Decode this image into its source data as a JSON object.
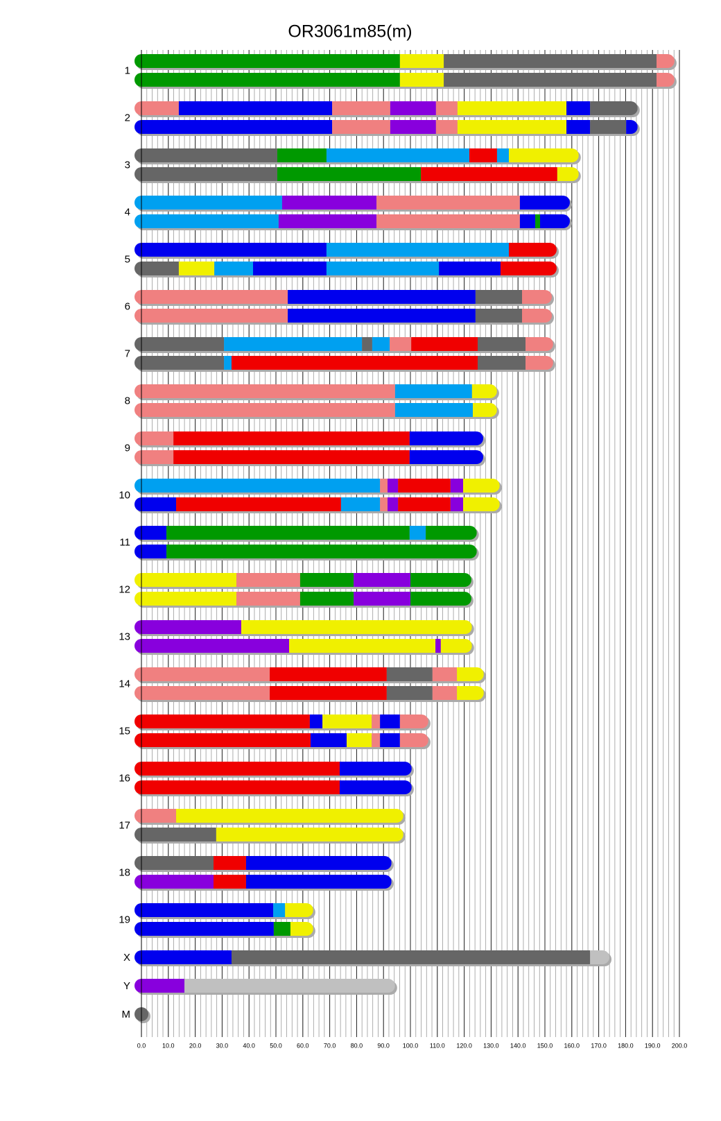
{
  "chart_data": {
    "type": "chromosome",
    "title": "OR3061m85(m)",
    "xlim": [
      0,
      200
    ],
    "xticks": [
      {
        "value": 0,
        "label": "0.0"
      },
      {
        "value": 10,
        "label": "10.0"
      },
      {
        "value": 20,
        "label": "20.0"
      },
      {
        "value": 30,
        "label": "30.0"
      },
      {
        "value": 40,
        "label": "40.0"
      },
      {
        "value": 50,
        "label": "50.0"
      },
      {
        "value": 60,
        "label": "60.0"
      },
      {
        "value": 70,
        "label": "70.0"
      },
      {
        "value": 80,
        "label": "80.0"
      },
      {
        "value": 90,
        "label": "90.0"
      },
      {
        "value": 100,
        "label": "100.0"
      },
      {
        "value": 110,
        "label": "110.0"
      },
      {
        "value": 120,
        "label": "120.0"
      },
      {
        "value": 130,
        "label": "130.0"
      },
      {
        "value": 140,
        "label": "140.0"
      },
      {
        "value": 150,
        "label": "150.0"
      },
      {
        "value": 160,
        "label": "160.0"
      },
      {
        "value": 170,
        "label": "170.0"
      },
      {
        "value": 180,
        "label": "180.0"
      },
      {
        "value": 190,
        "label": "190.0"
      },
      {
        "value": 200,
        "label": "200.0"
      }
    ],
    "grid": true,
    "minor_grid_step": 2,
    "chromosomes": [
      {
        "label": "1",
        "haplotypes": [
          {
            "colors": [
              "#009900",
              "#f0f000",
              "#666666",
              "#f08080"
            ],
            "lengths": [
              96.1,
              16.3,
              79.1,
              4.1
            ]
          },
          {
            "colors": [
              "#009900",
              "#f0f000",
              "#666666",
              "#f08080"
            ],
            "lengths": [
              96.1,
              16.3,
              79.1,
              4.1
            ]
          }
        ]
      },
      {
        "label": "2",
        "haplotypes": [
          {
            "colors": [
              "#f08080",
              "#0000ee",
              "#f08080",
              "#8800dd",
              "#f08080",
              "#f0f000",
              "#0000ee",
              "#666666"
            ],
            "lengths": [
              13.9,
              57,
              21.6,
              17,
              8,
              40.5,
              8.8,
              15.1
            ]
          },
          {
            "colors": [
              "#0000ee",
              "#f08080",
              "#8800dd",
              "#f08080",
              "#f0f000",
              "#0000ee",
              "#666666",
              "#0000ee"
            ],
            "lengths": [
              70.9,
              21.6,
              17,
              8,
              40.5,
              8.8,
              13.4,
              1.7
            ]
          }
        ]
      },
      {
        "label": "3",
        "haplotypes": [
          {
            "colors": [
              "#666666",
              "#009900",
              "#00a0f0",
              "#f00000",
              "#00a0f0",
              "#f0f000"
            ],
            "lengths": [
              50.5,
              18.3,
              53.1,
              10.3,
              4.4,
              23.4
            ]
          },
          {
            "colors": [
              "#666666",
              "#009900",
              "#f00000",
              "#f0f000"
            ],
            "lengths": [
              50.5,
              53.4,
              50.7,
              5.4
            ]
          }
        ]
      },
      {
        "label": "4",
        "haplotypes": [
          {
            "colors": [
              "#00a0f0",
              "#8800dd",
              "#f08080",
              "#0000ee"
            ],
            "lengths": [
              52.3,
              35.1,
              53.3,
              16
            ]
          },
          {
            "colors": [
              "#00a0f0",
              "#8800dd",
              "#f08080",
              "#0000ee",
              "#009900",
              "#0000ee"
            ],
            "lengths": [
              51,
              36.4,
              53.3,
              5.7,
              1.8,
              8.5
            ]
          }
        ]
      },
      {
        "label": "5",
        "haplotypes": [
          {
            "colors": [
              "#0000ee",
              "#00a0f0",
              "#f00000"
            ],
            "lengths": [
              68.8,
              67.8,
              15.2
            ]
          },
          {
            "colors": [
              "#666666",
              "#f0f000",
              "#00a0f0",
              "#0000ee",
              "#00a0f0",
              "#0000ee",
              "#f00000"
            ],
            "lengths": [
              13.9,
              13.2,
              14.4,
              27.3,
              41.8,
              22.9,
              18.3
            ]
          }
        ]
      },
      {
        "label": "6",
        "haplotypes": [
          {
            "colors": [
              "#f08080",
              "#0000ee",
              "#666666",
              "#f08080"
            ],
            "lengths": [
              54.4,
              69.8,
              17.3,
              8.5
            ]
          },
          {
            "colors": [
              "#f08080",
              "#0000ee",
              "#666666",
              "#f08080"
            ],
            "lengths": [
              54.4,
              69.8,
              17.3,
              8.5
            ]
          }
        ]
      },
      {
        "label": "7",
        "haplotypes": [
          {
            "colors": [
              "#666666",
              "#00a0f0",
              "#666666",
              "#00a0f0",
              "#f08080",
              "#f00000",
              "#666666",
              "#f08080"
            ],
            "lengths": [
              30.7,
              51.3,
              3.8,
              6.5,
              8,
              24.7,
              17.8,
              7.7
            ]
          },
          {
            "colors": [
              "#666666",
              "#00a0f0",
              "#f00000",
              "#666666",
              "#f08080"
            ],
            "lengths": [
              30.7,
              2.8,
              91.5,
              17.8,
              7.7
            ]
          }
        ]
      },
      {
        "label": "8",
        "haplotypes": [
          {
            "colors": [
              "#f08080",
              "#00a0f0",
              "#f0f000"
            ],
            "lengths": [
              94.3,
              28.6,
              6.7
            ]
          },
          {
            "colors": [
              "#f08080",
              "#00a0f0",
              "#f0f000"
            ],
            "lengths": [
              94.3,
              28.9,
              6.4
            ]
          }
        ]
      },
      {
        "label": "9",
        "haplotypes": [
          {
            "colors": [
              "#f08080",
              "#f00000",
              "#0000ee"
            ],
            "lengths": [
              11.9,
              87.8,
              24.8
            ]
          },
          {
            "colors": [
              "#f08080",
              "#f00000",
              "#0000ee"
            ],
            "lengths": [
              11.9,
              87.8,
              24.8
            ]
          }
        ]
      },
      {
        "label": "10",
        "haplotypes": [
          {
            "colors": [
              "#00a0f0",
              "#f08080",
              "#8800dd",
              "#f00000",
              "#8800dd",
              "#f0f000"
            ],
            "lengths": [
              88.7,
              2.8,
              3.9,
              19.5,
              4.7,
              11
            ]
          },
          {
            "colors": [
              "#0000ee",
              "#f00000",
              "#00a0f0",
              "#f08080",
              "#8800dd",
              "#f00000",
              "#8800dd",
              "#f0f000"
            ],
            "lengths": [
              12.9,
              61.3,
              14.5,
              2.8,
              3.9,
              19.5,
              4.7,
              11
            ]
          }
        ]
      },
      {
        "label": "11",
        "haplotypes": [
          {
            "colors": [
              "#0000ee",
              "#009900",
              "#00a0f0",
              "#009900"
            ],
            "lengths": [
              9.3,
              90.4,
              6,
              16.4
            ]
          },
          {
            "colors": [
              "#0000ee",
              "#009900"
            ],
            "lengths": [
              9.3,
              112.8
            ]
          }
        ]
      },
      {
        "label": "12",
        "haplotypes": [
          {
            "colors": [
              "#f0f000",
              "#f08080",
              "#009900",
              "#8800dd",
              "#009900"
            ],
            "lengths": [
              35.3,
              23.7,
              19.9,
              21.1,
              20.1
            ]
          },
          {
            "colors": [
              "#f0f000",
              "#f08080",
              "#009900",
              "#8800dd",
              "#009900"
            ],
            "lengths": [
              35.3,
              23.7,
              19.9,
              21.1,
              20.1
            ]
          }
        ]
      },
      {
        "label": "13",
        "haplotypes": [
          {
            "colors": [
              "#8800dd",
              "#f0f000"
            ],
            "lengths": [
              37.1,
              83.2
            ]
          },
          {
            "colors": [
              "#8800dd",
              "#f0f000",
              "#8800dd",
              "#f0f000"
            ],
            "lengths": [
              54.9,
              54.4,
              2,
              9
            ]
          }
        ]
      },
      {
        "label": "14",
        "haplotypes": [
          {
            "colors": [
              "#f08080",
              "#f00000",
              "#666666",
              "#f08080",
              "#f0f000"
            ],
            "lengths": [
              47.7,
              43.5,
              17,
              9.1,
              7.4
            ]
          },
          {
            "colors": [
              "#f08080",
              "#f00000",
              "#666666",
              "#f08080",
              "#f0f000"
            ],
            "lengths": [
              47.7,
              43.5,
              17,
              9.1,
              7.4
            ]
          }
        ]
      },
      {
        "label": "15",
        "haplotypes": [
          {
            "colors": [
              "#f00000",
              "#0000ee",
              "#f0f000",
              "#f08080",
              "#0000ee",
              "#f08080"
            ],
            "lengths": [
              62.6,
              4.7,
              18.3,
              3.1,
              7.4,
              8
            ]
          },
          {
            "colors": [
              "#f00000",
              "#0000ee",
              "#f0f000",
              "#f08080",
              "#0000ee",
              "#f08080"
            ],
            "lengths": [
              62.9,
              13.4,
              9.3,
              3.1,
              7.4,
              8
            ]
          }
        ]
      },
      {
        "label": "16",
        "haplotypes": [
          {
            "colors": [
              "#f00000",
              "#0000ee"
            ],
            "lengths": [
              73.7,
              24.2
            ]
          },
          {
            "colors": [
              "#f00000",
              "#0000ee"
            ],
            "lengths": [
              73.7,
              24.2
            ]
          }
        ]
      },
      {
        "label": "17",
        "haplotypes": [
          {
            "colors": [
              "#f08080",
              "#f0f000"
            ],
            "lengths": [
              12.9,
              81.9
            ]
          },
          {
            "colors": [
              "#666666",
              "#f0f000"
            ],
            "lengths": [
              27.8,
              67
            ]
          }
        ]
      },
      {
        "label": "18",
        "haplotypes": [
          {
            "colors": [
              "#666666",
              "#f00000",
              "#0000ee"
            ],
            "lengths": [
              26.8,
              12.1,
              51.5
            ]
          },
          {
            "colors": [
              "#8800dd",
              "#f00000",
              "#0000ee"
            ],
            "lengths": [
              26.8,
              12.1,
              51.5
            ]
          }
        ]
      },
      {
        "label": "19",
        "haplotypes": [
          {
            "colors": [
              "#0000ee",
              "#00a0f0",
              "#f0f000"
            ],
            "lengths": [
              49,
              4.4,
              7.9
            ]
          },
          {
            "colors": [
              "#0000ee",
              "#009900",
              "#f0f000"
            ],
            "lengths": [
              49.2,
              6.2,
              5.9
            ]
          }
        ]
      },
      {
        "label": "X",
        "haplotypes": [
          {
            "colors": [
              "#0000ee",
              "#666666",
              "#c0c0c0"
            ],
            "lengths": [
              33.5,
              133.3,
              4.6
            ]
          }
        ]
      },
      {
        "label": "Y",
        "haplotypes": [
          {
            "colors": [
              "#8800dd",
              "#c0c0c0"
            ],
            "lengths": [
              16,
              75.7
            ]
          }
        ]
      },
      {
        "label": "M",
        "haplotypes": [
          {
            "colors": [
              "#666666"
            ],
            "lengths": [
              0.02
            ]
          }
        ]
      }
    ]
  }
}
